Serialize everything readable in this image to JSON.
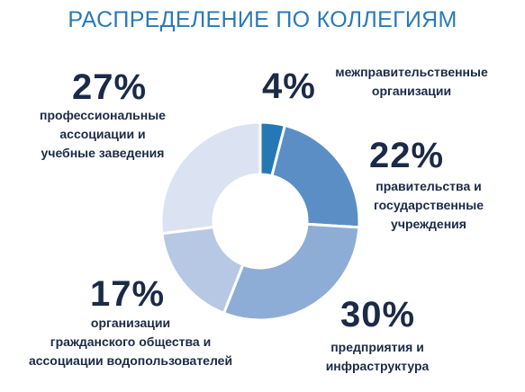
{
  "chart_data": {
    "type": "pie",
    "title": "РАСПРЕДЕЛЕНИЕ ПО КОЛЛЕГИЯМ",
    "slices": [
      {
        "value": 4,
        "label": "4%",
        "lines": [
          "межправительственные",
          "организации"
        ],
        "color": "#2479b4"
      },
      {
        "value": 22,
        "label": "22%",
        "lines": [
          "правительства и",
          "государственные",
          "учреждения"
        ],
        "color": "#5b8ec5"
      },
      {
        "value": 30,
        "label": "30%",
        "lines": [
          "предприятия и",
          "инфраструктура"
        ],
        "color": "#8eadd6"
      },
      {
        "value": 17,
        "label": "17%",
        "lines": [
          "организации",
          "гражданского общества  и",
          "ассоциации водопользователей"
        ],
        "color": "#b7c8e4"
      },
      {
        "value": 27,
        "label": "27%",
        "lines": [
          "профессиональные",
          "ассоциации и",
          "учебные заведения"
        ],
        "color": "#dbe2f2"
      }
    ]
  }
}
